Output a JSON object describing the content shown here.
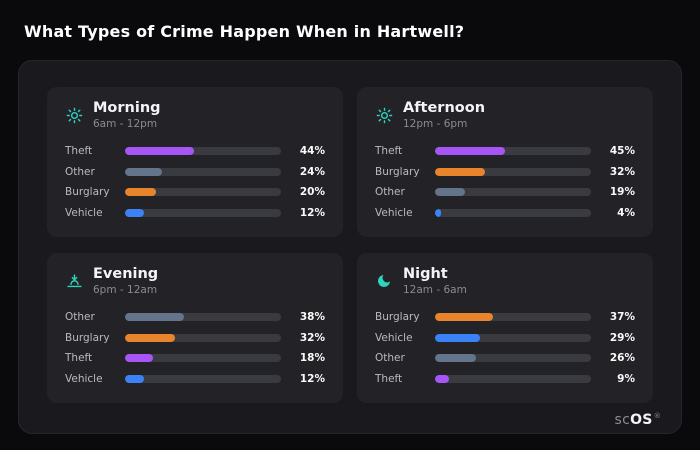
{
  "page": {
    "title": "What Types of Crime Happen When in Hartwell?"
  },
  "brand": {
    "prefix": "sc",
    "suffix": "OS",
    "reg": "®"
  },
  "colors": {
    "accent_teal": "#2dd4bf",
    "theft_purple": "#a855f7",
    "other_gray": "#64748b",
    "burglary_orange": "#e8842c",
    "vehicle_blue": "#3b82f6",
    "track": "#3a3a41",
    "panel_bg": "#1a1a1e",
    "card_bg": "#232327"
  },
  "chart_data": [
    {
      "type": "bar",
      "title": "Morning",
      "subtitle": "6am - 12pm",
      "icon": "sun-icon",
      "orientation": "horizontal",
      "xlim": [
        0,
        100
      ],
      "categories": [
        "Theft",
        "Other",
        "Burglary",
        "Vehicle"
      ],
      "values": [
        44,
        24,
        20,
        12
      ],
      "value_labels": [
        "44%",
        "24%",
        "20%",
        "12%"
      ],
      "colors": [
        "#a855f7",
        "#64748b",
        "#e8842c",
        "#3b82f6"
      ]
    },
    {
      "type": "bar",
      "title": "Afternoon",
      "subtitle": "12pm - 6pm",
      "icon": "sun-icon",
      "orientation": "horizontal",
      "xlim": [
        0,
        100
      ],
      "categories": [
        "Theft",
        "Burglary",
        "Other",
        "Vehicle"
      ],
      "values": [
        45,
        32,
        19,
        4
      ],
      "value_labels": [
        "45%",
        "32%",
        "19%",
        "4%"
      ],
      "colors": [
        "#a855f7",
        "#e8842c",
        "#64748b",
        "#3b82f6"
      ]
    },
    {
      "type": "bar",
      "title": "Evening",
      "subtitle": "6pm - 12am",
      "icon": "sunset-icon",
      "orientation": "horizontal",
      "xlim": [
        0,
        100
      ],
      "categories": [
        "Other",
        "Burglary",
        "Theft",
        "Vehicle"
      ],
      "values": [
        38,
        32,
        18,
        12
      ],
      "value_labels": [
        "38%",
        "32%",
        "18%",
        "12%"
      ],
      "colors": [
        "#64748b",
        "#e8842c",
        "#a855f7",
        "#3b82f6"
      ]
    },
    {
      "type": "bar",
      "title": "Night",
      "subtitle": "12am - 6am",
      "icon": "moon-icon",
      "orientation": "horizontal",
      "xlim": [
        0,
        100
      ],
      "categories": [
        "Burglary",
        "Vehicle",
        "Other",
        "Theft"
      ],
      "values": [
        37,
        29,
        26,
        9
      ],
      "value_labels": [
        "37%",
        "29%",
        "26%",
        "9%"
      ],
      "colors": [
        "#e8842c",
        "#3b82f6",
        "#64748b",
        "#a855f7"
      ]
    }
  ]
}
